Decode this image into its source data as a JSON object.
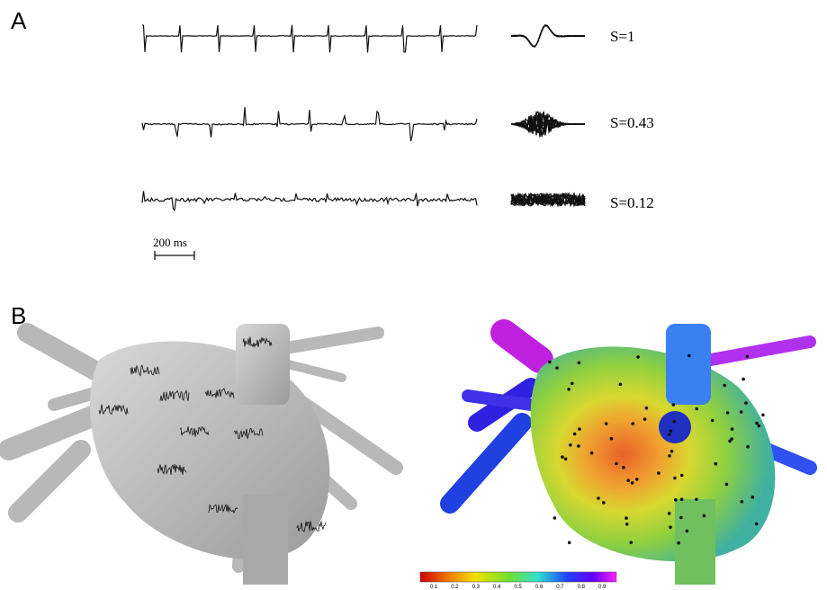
{
  "panels": [
    {
      "label": "A"
    },
    {
      "label": "B"
    }
  ],
  "traces": [
    {
      "similarity": "S=1"
    },
    {
      "similarity": "S=0.43"
    },
    {
      "similarity": "S=0.12"
    }
  ],
  "scale_bar": {
    "label": "200 ms"
  },
  "colorbar": {
    "ticks": [
      "0.1",
      "0.2",
      "0.3",
      "0.4",
      "0.5",
      "0.6",
      "0.7",
      "0.8",
      "0.9"
    ]
  }
}
